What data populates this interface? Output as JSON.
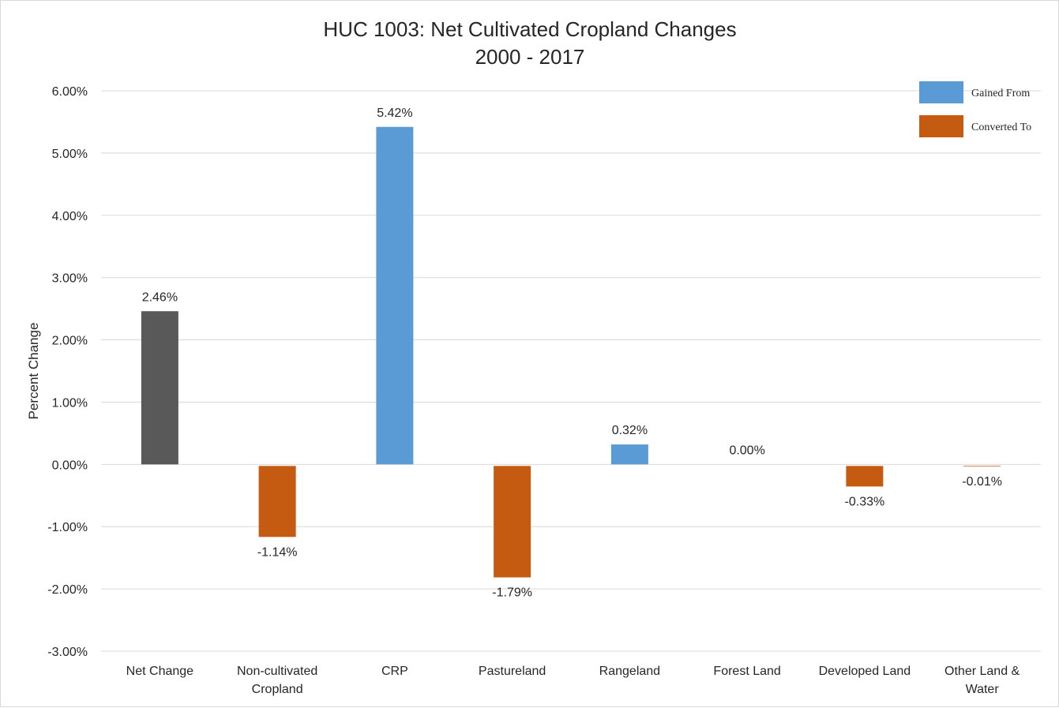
{
  "chart_data": {
    "type": "bar",
    "title": [
      "HUC 1003: Net Cultivated Cropland Changes",
      "2000 - 2017"
    ],
    "xlabel": "",
    "ylabel": "Percent Change",
    "ylim": [
      -3,
      6
    ],
    "ytick_step": 1,
    "ytick_labels": [
      "6.00%",
      "5.00%",
      "4.00%",
      "3.00%",
      "2.00%",
      "1.00%",
      "0.00%",
      "-1.00%",
      "-2.00%",
      "-3.00%"
    ],
    "grid": true,
    "legend_position": "top-right",
    "categories": [
      [
        "Net Change"
      ],
      [
        "Non-cultivated",
        "Cropland"
      ],
      [
        "CRP"
      ],
      [
        "Pastureland"
      ],
      [
        "Rangeland"
      ],
      [
        "Forest Land"
      ],
      [
        "Developed Land"
      ],
      [
        "Other Land &",
        "Water"
      ]
    ],
    "values": [
      2.46,
      -1.14,
      5.42,
      -1.79,
      0.32,
      0.0,
      -0.33,
      -0.01
    ],
    "data_labels": [
      "2.46%",
      "-1.14%",
      "5.42%",
      "-1.79%",
      "0.32%",
      "0.00%",
      "-0.33%",
      "-0.01%"
    ],
    "bar_series": [
      "net",
      "converted",
      "gained",
      "converted",
      "gained",
      "gained",
      "converted",
      "converted"
    ],
    "legend": [
      {
        "key": "gained",
        "label": "Gained From",
        "color": "#5B9BD5"
      },
      {
        "key": "converted",
        "label": "Converted To",
        "color": "#C55A11"
      }
    ],
    "colors": {
      "net": "#595959",
      "gained": "#5B9BD5",
      "converted": "#C55A11",
      "grid": "#d9d9d9"
    }
  }
}
